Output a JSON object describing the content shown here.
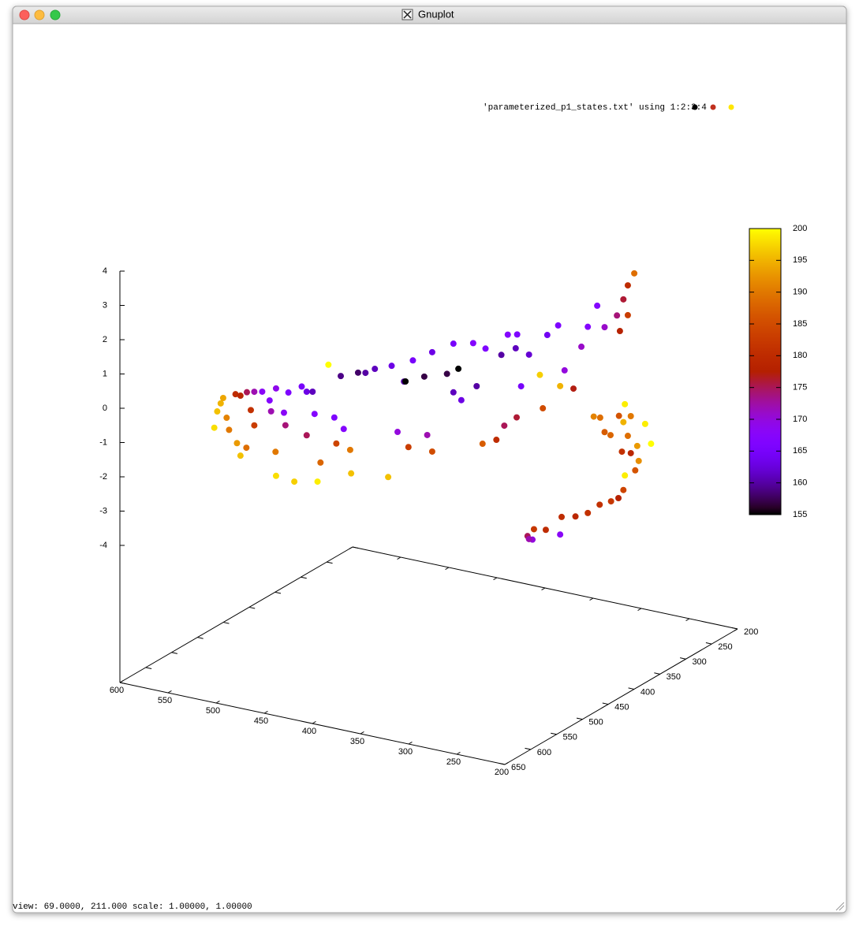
{
  "window": {
    "title": "Gnuplot",
    "status": "view: 69.0000, 211.000   scale: 1.00000, 1.00000"
  },
  "chart_data": {
    "type": "scatter3d",
    "legend": {
      "label": "'parameterized_p1_states.txt' using 1:2:3:4",
      "colors": [
        "#000000",
        "#c0301e",
        "#ffe600"
      ]
    },
    "xlim": [
      600,
      200
    ],
    "xticks": [
      600,
      550,
      500,
      450,
      400,
      350,
      300,
      250,
      200
    ],
    "ylim": [
      200,
      650
    ],
    "yticks": [
      200,
      250,
      300,
      350,
      400,
      450,
      500,
      550,
      600,
      650
    ],
    "zlim": [
      -4,
      4
    ],
    "zticks": [
      -4,
      -3,
      -2,
      -1,
      0,
      1,
      2,
      3,
      4
    ],
    "cblim": [
      155,
      200
    ],
    "cbticks": [
      155,
      160,
      165,
      170,
      175,
      180,
      185,
      190,
      195,
      200
    ],
    "x": [
      539,
      537,
      535,
      533,
      531,
      529,
      525,
      522,
      524,
      522,
      518,
      515,
      513,
      518,
      513,
      508,
      503,
      499,
      502,
      499,
      499,
      494,
      493,
      491,
      487,
      482,
      479,
      479,
      475,
      474,
      470,
      472,
      465,
      461,
      460,
      457,
      455,
      451,
      450,
      446,
      441,
      435,
      426,
      424,
      420,
      416,
      415,
      413,
      410,
      403,
      401,
      398,
      398,
      388,
      384,
      381,
      384,
      379,
      371,
      369,
      365,
      363,
      356,
      353,
      351,
      349,
      344,
      343,
      343,
      340,
      335,
      328,
      326,
      323,
      316,
      315,
      312,
      306,
      301,
      297,
      291,
      286,
      278,
      276,
      274,
      271,
      267,
      271,
      293,
      289,
      286,
      282,
      277,
      273,
      274,
      269,
      260,
      271,
      275,
      269,
      265,
      256,
      264,
      266,
      273,
      274,
      277,
      282,
      289,
      297,
      305,
      314,
      324,
      332,
      336,
      333,
      315,
      335
    ],
    "y": [
      581,
      579,
      576,
      575,
      572,
      571,
      566,
      562,
      565,
      562,
      558,
      555,
      552,
      557,
      552,
      546,
      541,
      536,
      540,
      537,
      536,
      530,
      529,
      527,
      523,
      518,
      514,
      514,
      510,
      508,
      504,
      506,
      498,
      494,
      492,
      489,
      487,
      482,
      482,
      476,
      471,
      464,
      455,
      452,
      448,
      443,
      442,
      440,
      437,
      428,
      426,
      422,
      422,
      412,
      407,
      403,
      407,
      401,
      393,
      390,
      386,
      384,
      376,
      372,
      370,
      367,
      361,
      361,
      360,
      358,
      352,
      344,
      342,
      339,
      331,
      329,
      326,
      320,
      314,
      309,
      302,
      297,
      288,
      286,
      283,
      280,
      275,
      280,
      305,
      300,
      297,
      293,
      286,
      282,
      283,
      278,
      267,
      280,
      284,
      278,
      273,
      263,
      272,
      275,
      282,
      283,
      287,
      292,
      301,
      309,
      318,
      328,
      340,
      348,
      353,
      349,
      329,
      352
    ],
    "z": [
      -0.81,
      -0.34,
      -0.12,
      0.04,
      -0.55,
      -0.9,
      0.12,
      0.06,
      -1.31,
      -1.69,
      -1.47,
      -0.38,
      -0.84,
      0.14,
      0.14,
      0.12,
      -0.15,
      0.18,
      -0.47,
      -1.66,
      -2.37,
      -0.55,
      -0.92,
      0.03,
      -2.58,
      0.18,
      -1.26,
      0.01,
      0,
      -0.66,
      -2.09,
      -2.64,
      0.74,
      -0.81,
      -1.58,
      0.38,
      -1.17,
      -1.8,
      -2.48,
      0.43,
      0.41,
      0.5,
      -2.68,
      0.55,
      -1.39,
      0.06,
      0.06,
      -1.86,
      0.66,
      0.15,
      -1.56,
      0.84,
      -2.06,
      0.18,
      1.04,
      0.29,
      -0.38,
      -0.63,
      1.01,
      -0.26,
      -1.95,
      0.82,
      -1.87,
      0.59,
      -1.48,
      1.16,
      0.74,
      -1.27,
      1.14,
      -0.37,
      0.53,
      -0.09,
      -1.07,
      1.06,
      1.31,
      -0.47,
      -0.02,
      -0.57,
      0.63,
      1.19,
      1.78,
      1.14,
      1.45,
      0.99,
      1.9,
      2.3,
      2.63,
      1.43,
      -1.44,
      -1.49,
      -1.92,
      -2.02,
      -1.49,
      -1.16,
      -1.68,
      -1.52,
      -1.79,
      -2.09,
      -2.54,
      -2.6,
      -2.41,
      -2.38,
      -2.85,
      -3.11,
      -3.24,
      -3.66,
      -3.88,
      -3.96,
      -4.02,
      -4.24,
      -4.31,
      -4.29,
      -4.62,
      -4.58,
      -4.76,
      -4.88,
      -4.8,
      -4.85
    ],
    "c": [
      198,
      196,
      195,
      194,
      191,
      190,
      180,
      179,
      193,
      196,
      189,
      181,
      183,
      175,
      172,
      168,
      167,
      169,
      172,
      190,
      198,
      168,
      174,
      166,
      197,
      165,
      175,
      163,
      161,
      167,
      188,
      199,
      200,
      166,
      184,
      159,
      167,
      190,
      196,
      158,
      160,
      161,
      196,
      163,
      170,
      160,
      155,
      183,
      165,
      157,
      172,
      163,
      185,
      157,
      165,
      155,
      161,
      163,
      167,
      160,
      187,
      166,
      180,
      160,
      175,
      167,
      161,
      176,
      166,
      165,
      162,
      197,
      185,
      164,
      166,
      195,
      170,
      177,
      171,
      167,
      167,
      171,
      174,
      178,
      176,
      180,
      189,
      183,
      191,
      189,
      187,
      188,
      186,
      199,
      195,
      190,
      199,
      189,
      181,
      179,
      193,
      200,
      192,
      186,
      199,
      184,
      178,
      182,
      181,
      181,
      179,
      180,
      180,
      182,
      175,
      170,
      168,
      172
    ]
  }
}
